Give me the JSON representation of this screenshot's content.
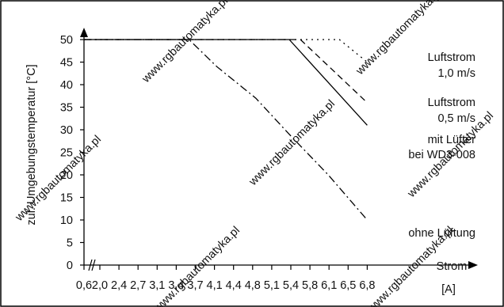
{
  "watermark": "www.rgbautomatyka.pl",
  "chart_data": {
    "type": "line",
    "ylabel": "zul. Umgebungstemperatur [°C]",
    "xlabel": "Strom",
    "xunit": "[A]",
    "x_tick_labels": [
      "0,6",
      "2,0",
      "2,4",
      "2,7",
      "3,1",
      "3,4",
      "3,7",
      "4,1",
      "4,4",
      "4,8",
      "5,1",
      "5,4",
      "5,8",
      "6,1",
      "6,5",
      "6,8"
    ],
    "ylim": [
      0,
      50
    ],
    "y_ticks": [
      0,
      5,
      10,
      15,
      20,
      25,
      30,
      35,
      40,
      45,
      50
    ],
    "x_axis_break": true,
    "grid": false,
    "series": [
      {
        "key": "luft10",
        "label_lines": [
          "Luftstrom",
          "1,0 m/s"
        ],
        "style": "dotted",
        "points": [
          [
            0.6,
            50
          ],
          [
            6.3,
            50
          ],
          [
            6.8,
            45
          ]
        ]
      },
      {
        "key": "luft05",
        "label_lines": [
          "Luftstrom",
          "0,5 m/s"
        ],
        "style": "dashed",
        "points": [
          [
            0.6,
            50
          ],
          [
            5.6,
            50
          ],
          [
            6.8,
            36
          ]
        ]
      },
      {
        "key": "luefter",
        "label_lines": [
          "mit Lüfter",
          "bei WD3-008"
        ],
        "style": "solid",
        "points": [
          [
            0.6,
            50
          ],
          [
            5.4,
            50
          ],
          [
            6.8,
            31
          ]
        ]
      },
      {
        "key": "ohne",
        "label_lines": [
          "ohne Lüftung"
        ],
        "style": "dashdot",
        "points": [
          [
            0.6,
            50
          ],
          [
            3.6,
            50
          ],
          [
            4.1,
            44
          ],
          [
            4.8,
            37
          ],
          [
            5.4,
            29
          ],
          [
            6.1,
            20
          ],
          [
            6.8,
            10
          ]
        ]
      }
    ]
  }
}
